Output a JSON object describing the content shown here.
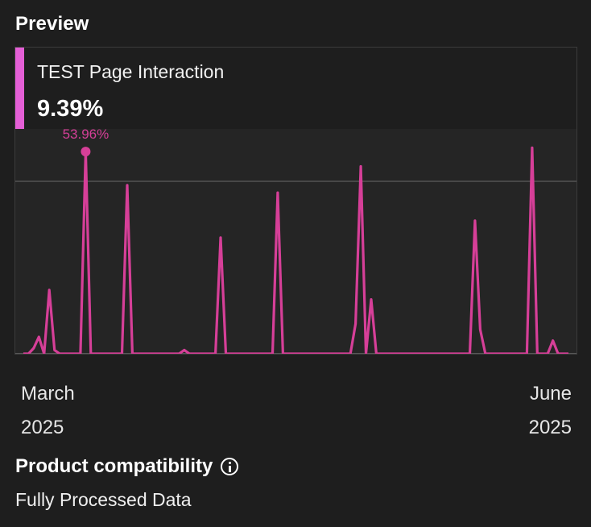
{
  "preview": {
    "title": "Preview",
    "metric_name": "TEST Page Interaction",
    "metric_value": "9.39%",
    "peak_label": "53.96%",
    "x_axis": {
      "start_month": "March",
      "start_year": "2025",
      "end_month": "June",
      "end_year": "2025"
    }
  },
  "compatibility": {
    "title": "Product compatibility",
    "info_icon": "info-icon",
    "value": "Fully Processed Data"
  },
  "colors": {
    "accent": "#e45fd6",
    "line": "#d63f98",
    "background": "#1e1e1e"
  },
  "chart_data": {
    "type": "line",
    "title": "",
    "xlabel": "",
    "ylabel": "",
    "ylim": [
      0,
      60
    ],
    "grid": true,
    "series": [
      {
        "values": [
          0,
          0,
          1.5,
          4.5,
          0,
          17,
          1,
          0,
          0,
          0,
          0,
          0,
          53.96,
          0,
          0,
          0,
          0,
          0,
          0,
          0,
          45,
          0,
          0,
          0,
          0,
          0,
          0,
          0,
          0,
          0,
          0,
          1,
          0,
          0,
          0,
          0,
          0,
          0,
          31,
          0,
          0,
          0,
          0,
          0,
          0,
          0,
          0,
          0,
          0,
          43,
          0,
          0,
          0,
          0,
          0,
          0,
          0,
          0,
          0,
          0,
          0,
          0,
          0,
          0,
          8,
          50,
          0,
          14.5,
          0,
          0,
          0,
          0,
          0,
          0,
          0,
          0,
          0,
          0,
          0,
          0,
          0,
          0,
          0,
          0,
          0,
          0,
          0,
          35.5,
          6.5,
          0,
          0,
          0,
          0,
          0,
          0,
          0,
          0,
          0,
          55,
          0,
          0,
          0,
          3.5,
          0,
          0,
          0
        ]
      }
    ]
  }
}
